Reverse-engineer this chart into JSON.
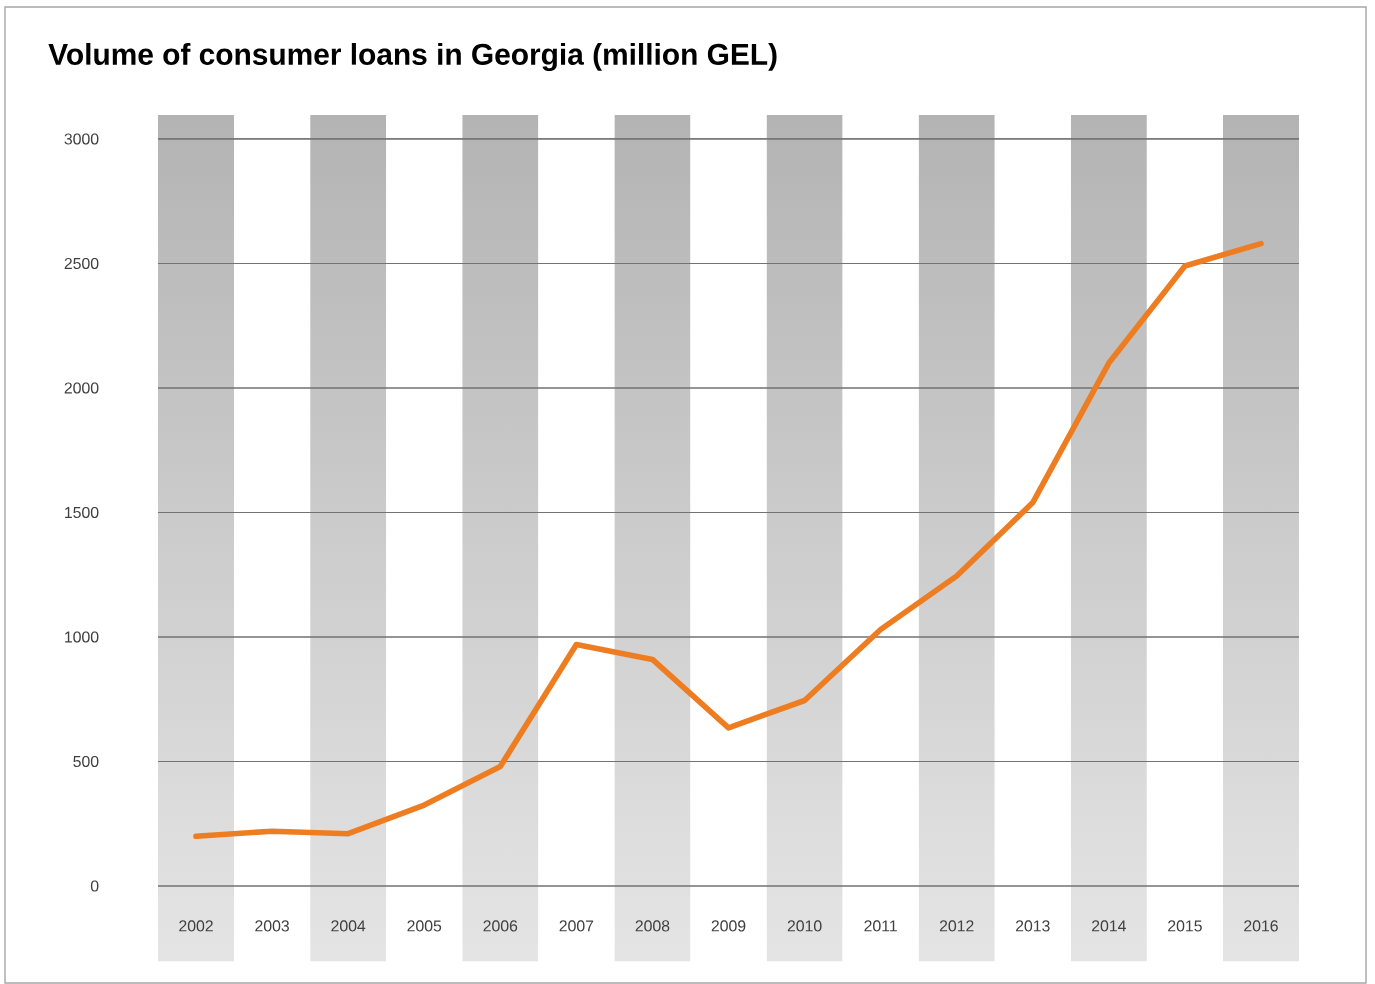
{
  "chart_data": {
    "type": "line",
    "title": "Volume of consumer loans in Georgia (million GEL)",
    "categories": [
      "2002",
      "2003",
      "2004",
      "2005",
      "2006",
      "2007",
      "2008",
      "2009",
      "2010",
      "2011",
      "2012",
      "2013",
      "2014",
      "2015",
      "2016"
    ],
    "series": [
      {
        "color": "#ee7d22",
        "values": [
          200,
          220,
          210,
          325,
          480,
          970,
          910,
          635,
          745,
          1030,
          1245,
          1540,
          2100,
          2490,
          2580
        ]
      }
    ],
    "ylim": [
      0,
      3000
    ],
    "yticks": [
      0,
      500,
      1000,
      1500,
      2000,
      2500,
      3000
    ],
    "grid": "y",
    "bands": [
      {
        "axis": "x",
        "from": "2002",
        "to": "2002",
        "color": "#b3b3b3"
      },
      {
        "axis": "x",
        "from": "2004",
        "to": "2004",
        "color": "#b3b3b3"
      },
      {
        "axis": "x",
        "from": "2006",
        "to": "2006",
        "color": "#b3b3b3"
      },
      {
        "axis": "x",
        "from": "2008",
        "to": "2008",
        "color": "#b3b3b3"
      },
      {
        "axis": "x",
        "from": "2010",
        "to": "2010",
        "color": "#b3b3b3"
      },
      {
        "axis": "x",
        "from": "2012",
        "to": "2012",
        "color": "#b3b3b3"
      },
      {
        "axis": "x",
        "from": "2014",
        "to": "2014",
        "color": "#b3b3b3"
      },
      {
        "axis": "x",
        "from": "2016",
        "to": "2016",
        "color": "#b3b3b3"
      }
    ],
    "marker": "none",
    "line_style": "solid"
  }
}
